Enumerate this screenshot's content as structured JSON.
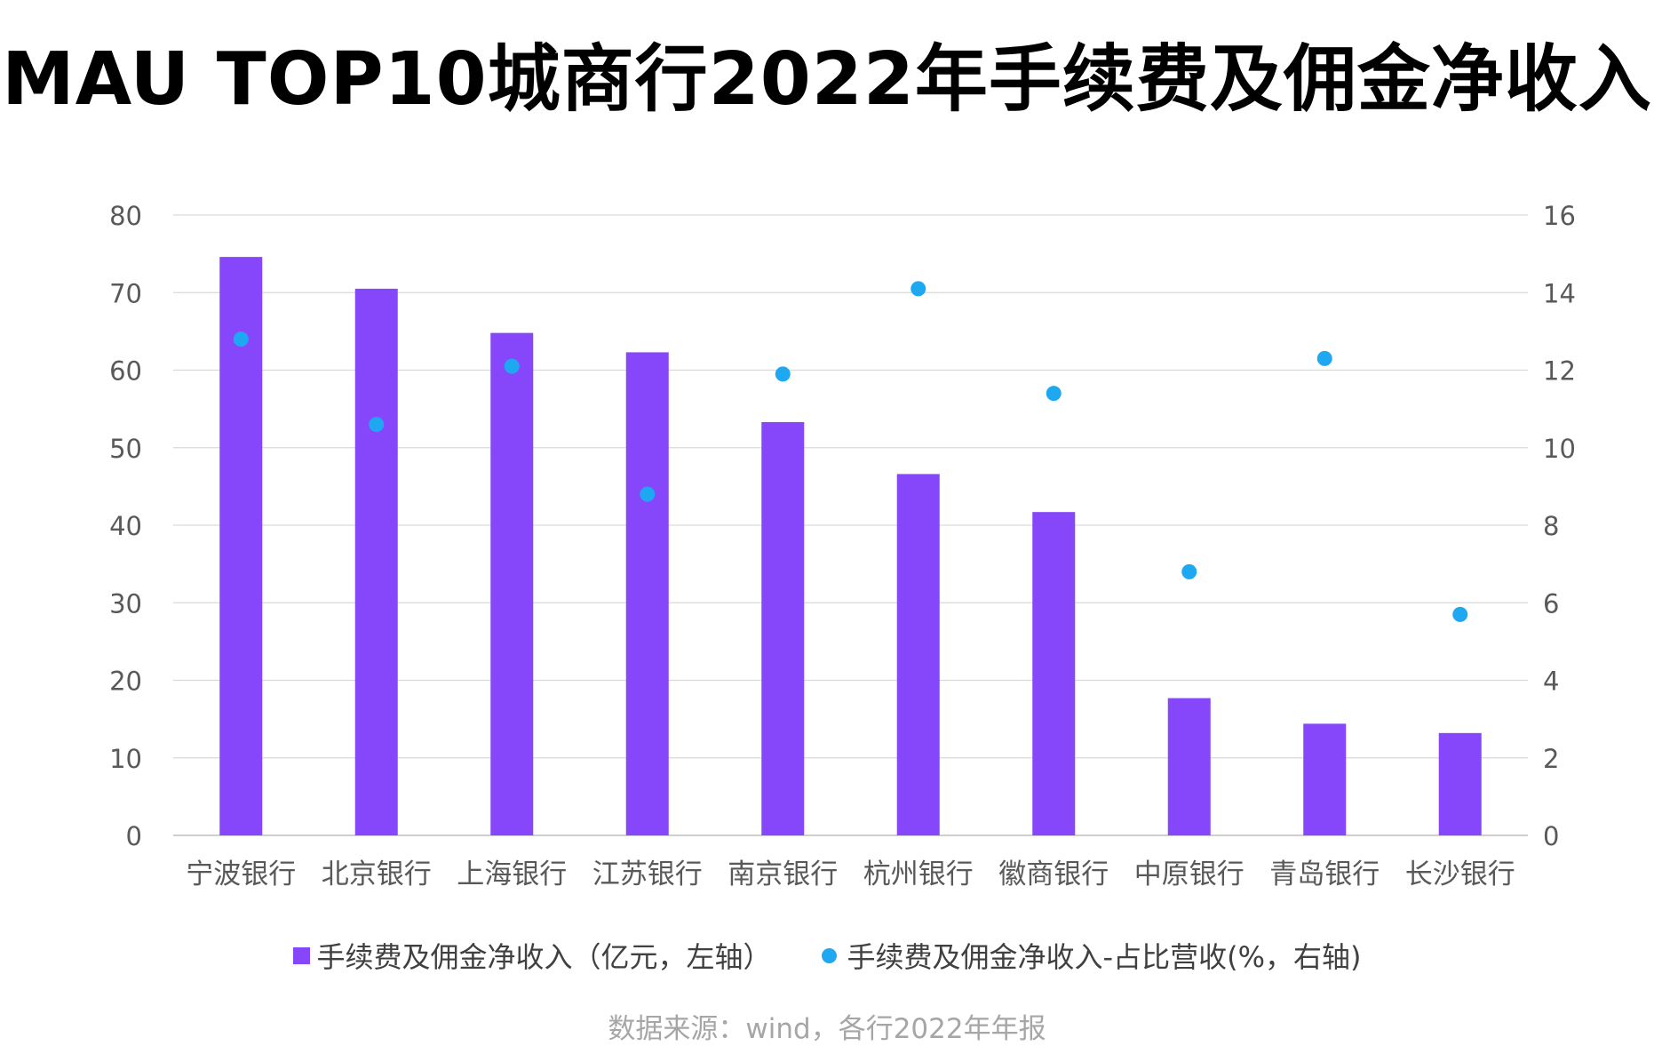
{
  "title": "MAU  TOP10城商行2022年手续费及佣金净收入",
  "source": "数据来源：wind，各行2022年年报",
  "colors": {
    "bar": "#8547F9",
    "dot": "#1FA8F2",
    "grid": "#d9d9d9",
    "axis_text": "#595959",
    "legend_text": "#404040",
    "source_text": "#a6a6a6"
  },
  "chart_data": {
    "type": "bar",
    "categories": [
      "宁波银行",
      "北京银行",
      "上海银行",
      "江苏银行",
      "南京银行",
      "杭州银行",
      "徽商银行",
      "中原银行",
      "青岛银行",
      "长沙银行"
    ],
    "series": [
      {
        "name": "手续费及佣金净收入（亿元，左轴）",
        "type": "bar",
        "axis": "left",
        "values": [
          74.6,
          70.5,
          64.8,
          62.3,
          53.3,
          46.6,
          41.7,
          17.7,
          14.4,
          13.2
        ]
      },
      {
        "name": "手续费及佣金净收入-占比营收(%，右轴)",
        "type": "scatter",
        "axis": "right",
        "values": [
          12.8,
          10.6,
          12.1,
          8.8,
          11.9,
          14.1,
          11.4,
          6.8,
          12.3,
          5.7
        ]
      }
    ],
    "y_left": {
      "min": 0,
      "max": 80,
      "step": 10,
      "ticks": [
        "0",
        "10",
        "20",
        "30",
        "40",
        "50",
        "60",
        "70",
        "80"
      ]
    },
    "y_right": {
      "min": 0,
      "max": 16,
      "step": 2,
      "ticks": [
        "0",
        "2",
        "4",
        "6",
        "8",
        "10",
        "12",
        "14",
        "16"
      ]
    },
    "grid": true,
    "legend": "bottom"
  }
}
